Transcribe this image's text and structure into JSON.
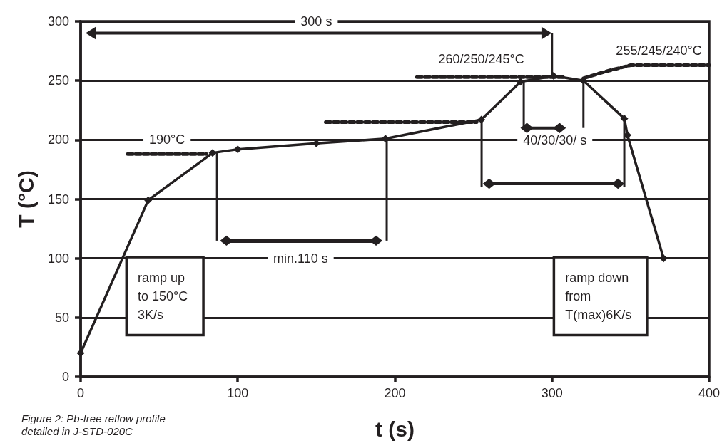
{
  "chart_data": {
    "type": "line",
    "xlabel": "t (s)",
    "ylabel": "T (°C)",
    "xlim": [
      0,
      400
    ],
    "xticks": [
      0,
      100,
      200,
      300,
      400
    ],
    "ylim": [
      0,
      300
    ],
    "yticks": [
      0,
      50,
      100,
      150,
      200,
      250,
      300
    ],
    "grid": "y",
    "marker": "diamond",
    "line_style": "solid",
    "series": [
      {
        "color": "#231f20",
        "x": [
          0,
          43,
          84,
          100,
          150,
          194,
          255,
          280,
          301,
          320,
          346,
          348,
          371
        ],
        "values": [
          20,
          149,
          189,
          192,
          197,
          201,
          217,
          249,
          254,
          250,
          218,
          204,
          100
        ]
      },
      {
        "color": "#231f20",
        "line_style": "dashed",
        "marker": "none",
        "x": [
          30,
          80
        ],
        "values": [
          188,
          188
        ]
      },
      {
        "color": "#231f20",
        "line_style": "dashed",
        "marker": "none",
        "x": [
          156,
          252
        ],
        "values": [
          215,
          215
        ]
      },
      {
        "color": "#231f20",
        "line_style": "dashed",
        "marker": "none",
        "x": [
          214,
          307
        ],
        "values": [
          253,
          253
        ]
      },
      {
        "color": "#231f20",
        "line_style": "dashed",
        "marker": "none",
        "x": [
          320,
          335,
          350,
          400
        ],
        "values": [
          252,
          258,
          263,
          263
        ]
      }
    ],
    "annotations": [
      "300 s",
      "190°C",
      "min.110 s",
      "260/250/245°C",
      "255/245/240°C",
      {
        "text": "40/30/30/ s",
        "x": 280,
        "y": 249
      },
      "ramp up\nto 150°C\n3K/s",
      "ramp down\nfrom\nT(max)6K/s",
      "Figure 2: Pb-free reflow profile detailed in J-STD-020C"
    ]
  }
}
